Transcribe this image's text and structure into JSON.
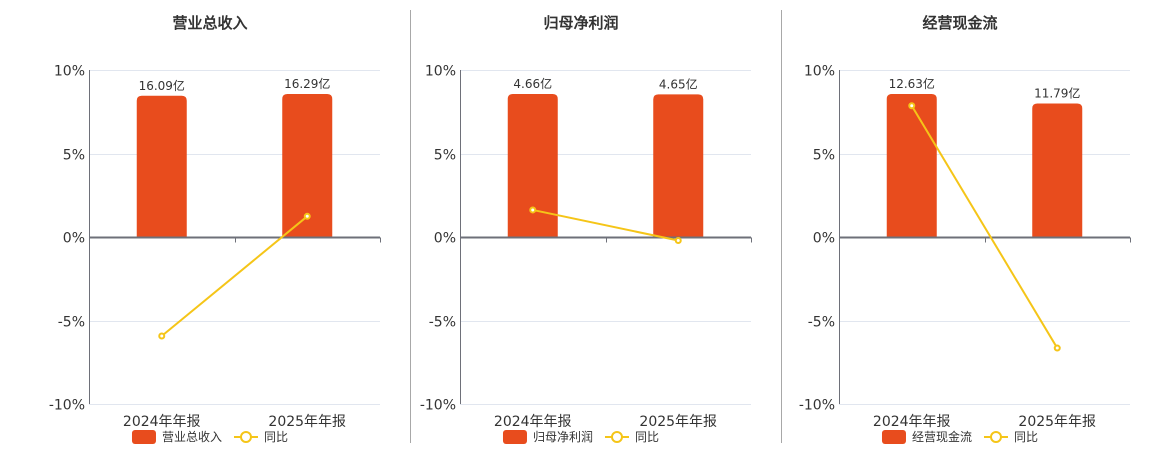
{
  "colors": {
    "bar": "#E84C1D",
    "line": "#F5C518",
    "grid": "#E1E6EF",
    "axis": "#6E7079",
    "text": "#333333"
  },
  "chart_data": [
    {
      "type": "bar+line",
      "title": "营业总收入",
      "categories": [
        "2024年年报",
        "2025年年报"
      ],
      "ylim": [
        -10,
        10
      ],
      "yticks": [
        {
          "value": 10,
          "label": "10%"
        },
        {
          "value": 5,
          "label": "5%"
        },
        {
          "value": 0,
          "label": "0%"
        },
        {
          "value": -5,
          "label": "-5%"
        },
        {
          "value": -10,
          "label": "-10%"
        }
      ],
      "series": [
        {
          "name": "营业总收入",
          "type": "bar",
          "unit": "亿",
          "values": [
            16.09,
            16.29
          ],
          "labels": [
            "16.09亿",
            "16.29亿"
          ]
        },
        {
          "name": "同比",
          "type": "line",
          "unit": "%",
          "values": [
            -5.93,
            1.24
          ]
        }
      ],
      "legend": [
        {
          "label": "营业总收入",
          "kind": "bar"
        },
        {
          "label": "同比",
          "kind": "line"
        }
      ],
      "xlabel": "",
      "ylabel": "",
      "grid": true,
      "legend_position": "bottom"
    },
    {
      "type": "bar+line",
      "title": "归母净利润",
      "categories": [
        "2024年年报",
        "2025年年报"
      ],
      "ylim": [
        -10,
        10
      ],
      "yticks": [
        {
          "value": 10,
          "label": "10%"
        },
        {
          "value": 5,
          "label": "5%"
        },
        {
          "value": 0,
          "label": "0%"
        },
        {
          "value": -5,
          "label": "-5%"
        },
        {
          "value": -10,
          "label": "-10%"
        }
      ],
      "series": [
        {
          "name": "归母净利润",
          "type": "bar",
          "unit": "亿",
          "values": [
            4.66,
            4.65
          ],
          "labels": [
            "4.66亿",
            "4.65亿"
          ]
        },
        {
          "name": "同比",
          "type": "line",
          "unit": "%",
          "values": [
            1.62,
            -0.21
          ]
        }
      ],
      "legend": [
        {
          "label": "归母净利润",
          "kind": "bar"
        },
        {
          "label": "同比",
          "kind": "line"
        }
      ],
      "xlabel": "",
      "ylabel": "",
      "grid": true,
      "legend_position": "bottom"
    },
    {
      "type": "bar+line",
      "title": "经营现金流",
      "categories": [
        "2024年年报",
        "2025年年报"
      ],
      "ylim": [
        -10,
        10
      ],
      "yticks": [
        {
          "value": 10,
          "label": "10%"
        },
        {
          "value": 5,
          "label": "5%"
        },
        {
          "value": 0,
          "label": "0%"
        },
        {
          "value": -5,
          "label": "-5%"
        },
        {
          "value": -10,
          "label": "-10%"
        }
      ],
      "series": [
        {
          "name": "经营现金流",
          "type": "bar",
          "unit": "亿",
          "values": [
            12.63,
            11.79
          ],
          "labels": [
            "12.63亿",
            "11.79亿"
          ]
        },
        {
          "name": "同比",
          "type": "line",
          "unit": "%",
          "values": [
            7.86,
            -6.65
          ]
        }
      ],
      "legend": [
        {
          "label": "经营现金流",
          "kind": "bar"
        },
        {
          "label": "同比",
          "kind": "line"
        }
      ],
      "xlabel": "",
      "ylabel": "",
      "grid": true,
      "legend_position": "bottom"
    }
  ]
}
